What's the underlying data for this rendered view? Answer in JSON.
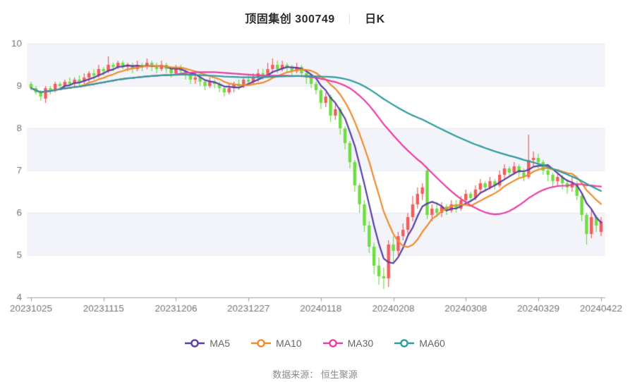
{
  "header": {
    "title": "顶固集创 300749",
    "separator": "｜",
    "period_label": "日K"
  },
  "footer": {
    "source_label": "数据来源： 恒生聚源"
  },
  "legend": [
    {
      "id": "ma5",
      "label": "MA5",
      "color": "#5b3fa5"
    },
    {
      "id": "ma10",
      "label": "MA10",
      "color": "#ee8c30"
    },
    {
      "id": "ma30",
      "label": "MA30",
      "color": "#e83ea6"
    },
    {
      "id": "ma60",
      "label": "MA60",
      "color": "#2f9b9d"
    }
  ],
  "chart_data": {
    "type": "candlestick",
    "title": "顶固集创 300749 ｜ 日K",
    "ylim": [
      4,
      10
    ],
    "y_ticks": [
      4,
      5,
      6,
      7,
      8,
      9,
      10
    ],
    "x_tick_labels": [
      "20231025",
      "20231115",
      "20231206",
      "20231227",
      "20240118",
      "20240208",
      "20240308",
      "20240329",
      "20240422"
    ],
    "x_tick_indices": [
      0,
      15,
      30,
      45,
      60,
      75,
      90,
      105,
      118
    ],
    "grid": "alternating-horizontal-bands",
    "legend_position": "bottom-center",
    "candle_format": "[open, close, low, high]",
    "colors": {
      "up_candle": "#f25c5c",
      "down_candle": "#6edd41",
      "ma5": "#5b3fa5",
      "ma10": "#ee8c30",
      "ma30": "#e83ea6",
      "ma60": "#2f9b9d",
      "band_fill": "#f3f4f9",
      "gridline": "#e9ebf2",
      "axis_line": "#9aa0a6",
      "tick_text": "#737373"
    },
    "moving_averages": {
      "periods": [
        5,
        10,
        30,
        60
      ],
      "computed_from_closes": true
    },
    "candles": [
      [
        9.05,
        8.95,
        8.9,
        9.1
      ],
      [
        8.95,
        8.85,
        8.8,
        9.0
      ],
      [
        8.85,
        8.75,
        8.65,
        8.9
      ],
      [
        8.7,
        8.95,
        8.6,
        9.0
      ],
      [
        8.95,
        8.9,
        8.8,
        9.0
      ],
      [
        8.9,
        9.05,
        8.85,
        9.1
      ],
      [
        9.05,
        9.0,
        8.9,
        9.1
      ],
      [
        9.0,
        9.1,
        8.95,
        9.15
      ],
      [
        9.1,
        9.05,
        9.0,
        9.2
      ],
      [
        9.05,
        9.15,
        9.0,
        9.2
      ],
      [
        9.15,
        9.1,
        9.0,
        9.25
      ],
      [
        9.1,
        9.2,
        9.05,
        9.3
      ],
      [
        9.2,
        9.3,
        9.1,
        9.35
      ],
      [
        9.3,
        9.25,
        9.15,
        9.4
      ],
      [
        9.25,
        9.4,
        9.2,
        9.5
      ],
      [
        9.4,
        9.35,
        9.25,
        9.45
      ],
      [
        9.35,
        9.5,
        9.3,
        9.7
      ],
      [
        9.5,
        9.45,
        9.35,
        9.55
      ],
      [
        9.45,
        9.55,
        9.4,
        9.6
      ],
      [
        9.55,
        9.45,
        9.4,
        9.6
      ],
      [
        9.45,
        9.5,
        9.35,
        9.55
      ],
      [
        9.5,
        9.4,
        9.3,
        9.55
      ],
      [
        9.4,
        9.5,
        9.35,
        9.6
      ],
      [
        9.5,
        9.45,
        9.35,
        9.55
      ],
      [
        9.45,
        9.55,
        9.4,
        9.65
      ],
      [
        9.55,
        9.45,
        9.35,
        9.6
      ],
      [
        9.45,
        9.4,
        9.3,
        9.55
      ],
      [
        9.4,
        9.5,
        9.35,
        9.6
      ],
      [
        9.5,
        9.4,
        9.3,
        9.55
      ],
      [
        9.4,
        9.3,
        9.2,
        9.45
      ],
      [
        9.3,
        9.45,
        9.25,
        9.5
      ],
      [
        9.45,
        9.35,
        9.25,
        9.5
      ],
      [
        9.35,
        9.25,
        9.15,
        9.4
      ],
      [
        9.25,
        9.15,
        9.05,
        9.3
      ],
      [
        9.15,
        9.2,
        9.05,
        9.3
      ],
      [
        9.2,
        9.1,
        9.0,
        9.25
      ],
      [
        9.1,
        9.0,
        8.9,
        9.15
      ],
      [
        9.0,
        9.1,
        8.95,
        9.2
      ],
      [
        9.1,
        9.05,
        8.95,
        9.15
      ],
      [
        9.05,
        8.95,
        8.85,
        9.1
      ],
      [
        8.95,
        8.85,
        8.75,
        9.0
      ],
      [
        8.85,
        8.95,
        8.8,
        9.05
      ],
      [
        8.95,
        9.05,
        8.85,
        9.1
      ],
      [
        9.05,
        9.0,
        8.9,
        9.15
      ],
      [
        9.0,
        9.15,
        8.95,
        9.2
      ],
      [
        9.15,
        9.1,
        9.0,
        9.25
      ],
      [
        9.1,
        9.2,
        9.05,
        9.3
      ],
      [
        9.2,
        9.3,
        9.1,
        9.4
      ],
      [
        9.3,
        9.25,
        9.15,
        9.4
      ],
      [
        9.25,
        9.4,
        9.2,
        9.55
      ],
      [
        9.4,
        9.5,
        9.3,
        9.65
      ],
      [
        9.5,
        9.4,
        9.3,
        9.6
      ],
      [
        9.4,
        9.5,
        9.35,
        9.6
      ],
      [
        9.5,
        9.45,
        9.3,
        9.55
      ],
      [
        9.45,
        9.35,
        9.25,
        9.5
      ],
      [
        9.35,
        9.45,
        9.3,
        9.55
      ],
      [
        9.45,
        9.3,
        9.2,
        9.5
      ],
      [
        9.3,
        9.2,
        9.05,
        9.35
      ],
      [
        9.2,
        9.05,
        8.95,
        9.25
      ],
      [
        9.05,
        8.9,
        8.8,
        9.1
      ],
      [
        8.9,
        8.6,
        8.45,
        8.95
      ],
      [
        8.6,
        8.75,
        8.5,
        8.85
      ],
      [
        8.75,
        8.3,
        8.15,
        8.8
      ],
      [
        8.3,
        8.45,
        8.2,
        8.6
      ],
      [
        8.45,
        8.0,
        7.85,
        8.5
      ],
      [
        8.0,
        7.65,
        7.5,
        8.05
      ],
      [
        7.65,
        7.2,
        7.05,
        7.7
      ],
      [
        7.2,
        6.65,
        6.5,
        7.25
      ],
      [
        6.65,
        6.2,
        6.0,
        6.7
      ],
      [
        6.2,
        5.7,
        5.55,
        6.3
      ],
      [
        5.7,
        5.2,
        5.05,
        5.8
      ],
      [
        5.2,
        4.75,
        4.55,
        5.3
      ],
      [
        4.75,
        4.5,
        4.3,
        4.95
      ],
      [
        4.5,
        4.45,
        4.2,
        4.7
      ],
      [
        4.45,
        5.25,
        4.25,
        5.35
      ],
      [
        5.25,
        5.1,
        4.85,
        5.45
      ],
      [
        5.1,
        5.45,
        5.0,
        5.55
      ],
      [
        5.45,
        5.6,
        5.35,
        5.75
      ],
      [
        5.6,
        5.9,
        5.5,
        6.0
      ],
      [
        5.9,
        6.2,
        5.8,
        6.4
      ],
      [
        6.2,
        6.45,
        6.1,
        6.6
      ],
      [
        6.45,
        6.6,
        6.3,
        6.7
      ],
      [
        7.0,
        5.95,
        5.85,
        7.1
      ],
      [
        5.95,
        6.1,
        5.8,
        6.2
      ],
      [
        6.1,
        6.0,
        5.9,
        6.25
      ],
      [
        6.0,
        6.15,
        5.9,
        6.25
      ],
      [
        6.15,
        6.05,
        5.95,
        6.2
      ],
      [
        6.05,
        6.2,
        6.0,
        6.3
      ],
      [
        6.2,
        6.1,
        6.0,
        6.3
      ],
      [
        6.1,
        6.3,
        6.05,
        6.4
      ],
      [
        6.3,
        6.45,
        6.2,
        6.55
      ],
      [
        6.45,
        6.35,
        6.25,
        6.5
      ],
      [
        6.35,
        6.55,
        6.3,
        6.65
      ],
      [
        6.55,
        6.7,
        6.45,
        6.8
      ],
      [
        6.7,
        6.6,
        6.5,
        6.75
      ],
      [
        6.6,
        6.75,
        6.55,
        6.85
      ],
      [
        6.75,
        6.65,
        6.55,
        6.8
      ],
      [
        6.65,
        6.9,
        6.6,
        7.0
      ],
      [
        6.9,
        7.05,
        6.8,
        7.15
      ],
      [
        7.05,
        6.95,
        6.85,
        7.1
      ],
      [
        6.95,
        7.1,
        6.9,
        7.2
      ],
      [
        7.1,
        6.95,
        6.85,
        7.15
      ],
      [
        6.95,
        6.85,
        6.75,
        7.05
      ],
      [
        6.85,
        7.25,
        6.8,
        7.85
      ],
      [
        7.25,
        7.3,
        7.1,
        7.45
      ],
      [
        7.3,
        7.2,
        7.05,
        7.4
      ],
      [
        7.2,
        7.0,
        6.9,
        7.25
      ],
      [
        7.0,
        6.9,
        6.75,
        7.1
      ],
      [
        6.9,
        6.75,
        6.6,
        6.95
      ],
      [
        6.75,
        6.85,
        6.65,
        6.95
      ],
      [
        6.85,
        6.7,
        6.55,
        6.9
      ],
      [
        6.7,
        6.6,
        6.45,
        6.8
      ],
      [
        6.6,
        6.7,
        6.5,
        6.85
      ],
      [
        6.7,
        6.4,
        6.3,
        6.75
      ],
      [
        6.4,
        5.95,
        5.8,
        6.45
      ],
      [
        5.95,
        5.5,
        5.25,
        6.0
      ],
      [
        5.5,
        5.9,
        5.4,
        6.1
      ],
      [
        5.9,
        5.7,
        5.55,
        5.95
      ],
      [
        5.55,
        5.8,
        5.45,
        5.9
      ]
    ]
  }
}
